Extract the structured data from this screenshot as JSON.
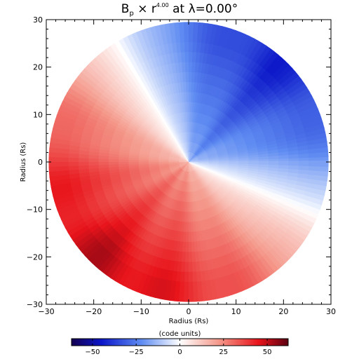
{
  "chart_data": {
    "type": "heatmap",
    "title": {
      "prefix": "B",
      "prefix_sub": "p",
      "middle": " × r",
      "exponent": "4.00",
      "suffix": " at λ=0.00°"
    },
    "xlabel": "Radius (Rs)",
    "ylabel": "Radius (Rs)",
    "xlim": [
      -30,
      30
    ],
    "ylim": [
      -30,
      30
    ],
    "xticks": [
      -30,
      -20,
      -10,
      0,
      10,
      20,
      30
    ],
    "yticks": [
      -30,
      -20,
      -10,
      0,
      10,
      20,
      30
    ],
    "disk_radius": 29.5,
    "colorbar": {
      "label": "(code units)",
      "range": [
        -62,
        62
      ],
      "ticks": [
        -50,
        -25,
        0,
        25,
        50
      ],
      "stops": [
        {
          "value": -62,
          "color": "#140050"
        },
        {
          "value": -45,
          "color": "#0b16c8"
        },
        {
          "value": -22,
          "color": "#5f8cf2"
        },
        {
          "value": 0,
          "color": "#ffffff"
        },
        {
          "value": 22,
          "color": "#f49a8c"
        },
        {
          "value": 45,
          "color": "#e8141b"
        },
        {
          "value": 62,
          "color": "#5c0010"
        }
      ]
    },
    "field": {
      "description_of_boundary": "current sheet",
      "sheet_angle_a_deg": 121,
      "sheet_angle_b_deg": -22,
      "positive_region": "lower-left half",
      "negative_region": "upper-right half"
    }
  }
}
